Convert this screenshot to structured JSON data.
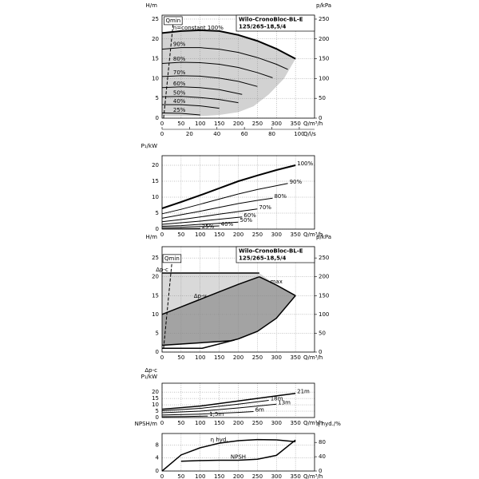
{
  "chart_data": [
    {
      "type": "line",
      "title": [
        "Wilo-CronoBloc-BL-E",
        "125/265-18,5/4"
      ],
      "ylabel": [
        "H/m"
      ],
      "y2label": "p/kPa",
      "xlabel": "Q/m³/h",
      "x2label": "Q/l/s",
      "xlim": [
        0,
        400
      ],
      "xticks": [
        0,
        50,
        100,
        150,
        200,
        250,
        300,
        350
      ],
      "x2lim": [
        0,
        111.1
      ],
      "x2ticks": [
        0,
        20,
        40,
        60,
        80,
        100
      ],
      "ylim": [
        0,
        26
      ],
      "yticks": [
        0,
        5,
        10,
        15,
        20,
        25
      ],
      "y2lim": [
        0,
        260
      ],
      "y2ticks": [
        0,
        50,
        100,
        150,
        200,
        250
      ],
      "grid": true,
      "areas": [
        {
          "color": "#d2d2d2",
          "x": [
            0,
            50,
            100,
            150,
            200,
            250,
            300,
            350,
            320,
            280,
            240,
            200,
            150,
            100,
            0
          ],
          "values": [
            21.5,
            22,
            22.2,
            22,
            21,
            19.5,
            17.5,
            15,
            10,
            6,
            3,
            1.5,
            0.8,
            0.5,
            0.5
          ]
        }
      ],
      "series": [
        {
          "name": "n=constant 100%",
          "color": "#000",
          "width": 2,
          "x": [
            0,
            50,
            100,
            150,
            200,
            250,
            300,
            350
          ],
          "values": [
            21.5,
            22,
            22.2,
            22,
            21,
            19.5,
            17.5,
            15
          ]
        },
        {
          "name": "90%",
          "color": "#000",
          "width": 1,
          "x": [
            0,
            50,
            100,
            150,
            200,
            250,
            300,
            330
          ],
          "values": [
            17.4,
            17.8,
            17.8,
            17.4,
            16.6,
            15.3,
            13.6,
            12.3
          ]
        },
        {
          "name": "80%",
          "color": "#000",
          "width": 1,
          "x": [
            0,
            50,
            100,
            150,
            200,
            250,
            290
          ],
          "values": [
            13.8,
            14.1,
            14,
            13.6,
            12.8,
            11.5,
            10.2
          ]
        },
        {
          "name": "70%",
          "color": "#000",
          "width": 1,
          "x": [
            0,
            50,
            100,
            150,
            200,
            250
          ],
          "values": [
            10.5,
            10.7,
            10.6,
            10.1,
            9.3,
            8
          ]
        },
        {
          "name": "60%",
          "color": "#000",
          "width": 1,
          "x": [
            0,
            50,
            100,
            150,
            210
          ],
          "values": [
            7.7,
            7.9,
            7.7,
            7.2,
            6
          ]
        },
        {
          "name": "50%",
          "color": "#000",
          "width": 1,
          "x": [
            0,
            50,
            100,
            150,
            200
          ],
          "values": [
            5.4,
            5.5,
            5.2,
            4.7,
            3.9
          ]
        },
        {
          "name": "40%",
          "color": "#000",
          "width": 1,
          "x": [
            0,
            50,
            100,
            150
          ],
          "values": [
            3.4,
            3.4,
            3.1,
            2.5
          ]
        },
        {
          "name": "25%",
          "color": "#000",
          "width": 1,
          "x": [
            0,
            50,
            100
          ],
          "values": [
            1.3,
            1.2,
            0.8
          ]
        },
        {
          "name": "Qmin",
          "color": "#000",
          "width": 1,
          "dash": true,
          "x": [
            4,
            29
          ],
          "values": [
            0,
            23.8
          ]
        }
      ]
    },
    {
      "type": "line",
      "ylabel": [
        "P₁/kW"
      ],
      "xlabel": "Q/m³/h",
      "xlim": [
        0,
        400
      ],
      "xticks": [
        0,
        50,
        100,
        150,
        200,
        250,
        300,
        350
      ],
      "ylim": [
        0,
        23
      ],
      "yticks": [
        0,
        5,
        10,
        15,
        20
      ],
      "grid": true,
      "series": [
        {
          "name": "100%",
          "color": "#000",
          "width": 2,
          "x": [
            0,
            50,
            100,
            150,
            200,
            250,
            300,
            350
          ],
          "values": [
            6.5,
            8.5,
            10.6,
            12.8,
            15,
            16.8,
            18.5,
            20
          ]
        },
        {
          "name": "90%",
          "color": "#000",
          "width": 1,
          "x": [
            0,
            50,
            100,
            150,
            200,
            250,
            300,
            330
          ],
          "values": [
            4.8,
            6.2,
            7.8,
            9.4,
            11,
            12.4,
            13.6,
            14.3
          ]
        },
        {
          "name": "80%",
          "color": "#000",
          "width": 1,
          "x": [
            0,
            50,
            100,
            150,
            200,
            250,
            290
          ],
          "values": [
            3.4,
            4.5,
            5.6,
            6.8,
            8,
            9,
            9.7
          ]
        },
        {
          "name": "70%",
          "color": "#000",
          "width": 1,
          "x": [
            0,
            50,
            100,
            150,
            200,
            250
          ],
          "values": [
            2.3,
            3,
            3.8,
            4.7,
            5.5,
            6.3
          ]
        },
        {
          "name": "60%",
          "color": "#000",
          "width": 1,
          "x": [
            0,
            50,
            100,
            150,
            210
          ],
          "values": [
            1.5,
            2,
            2.5,
            3.1,
            3.8
          ]
        },
        {
          "name": "50%",
          "color": "#000",
          "width": 1,
          "x": [
            0,
            50,
            100,
            150,
            200
          ],
          "values": [
            0.9,
            1.1,
            1.5,
            1.8,
            2.2
          ]
        },
        {
          "name": "40%",
          "color": "#000",
          "width": 1,
          "x": [
            0,
            50,
            100,
            150
          ],
          "values": [
            0.5,
            0.6,
            0.8,
            1
          ]
        },
        {
          "name": "25%",
          "color": "#000",
          "width": 1,
          "x": [
            0,
            50,
            100
          ],
          "values": [
            0.1,
            0.15,
            0.2
          ]
        }
      ]
    },
    {
      "type": "line",
      "title": [
        "Wilo-CronoBloc-BL-E",
        "125/265-18,5/4"
      ],
      "ylabel": [
        "H/m"
      ],
      "y2label": "p/kPa",
      "xlabel": "Q/m³/h",
      "xlim": [
        0,
        400
      ],
      "xticks": [
        0,
        50,
        100,
        150,
        200,
        250,
        300,
        350
      ],
      "ylim": [
        0,
        28
      ],
      "yticks": [
        0,
        5,
        10,
        15,
        20,
        25
      ],
      "y2lim": [
        0,
        280
      ],
      "y2ticks": [
        0,
        50,
        100,
        150,
        200,
        250
      ],
      "grid": true,
      "areas": [
        {
          "color": "#d9d9d9",
          "x": [
            0,
            255,
            300,
            350,
            300,
            250,
            200,
            180,
            0
          ],
          "values": [
            21,
            21,
            17.8,
            15,
            9,
            5.5,
            3.5,
            3,
            1.8
          ]
        },
        {
          "color": "#a3a3a3",
          "x": [
            0,
            50,
            100,
            150,
            200,
            255,
            300,
            350,
            300,
            250,
            200,
            180,
            0
          ],
          "values": [
            10,
            12,
            14,
            16,
            18,
            20,
            17.8,
            15,
            9,
            5.5,
            3.5,
            3,
            1.8
          ]
        }
      ],
      "series": [
        {
          "name": "Δp-c",
          "color": "#000",
          "width": 1.5,
          "x": [
            0,
            255
          ],
          "values": [
            21,
            21
          ]
        },
        {
          "name": "Δp-v",
          "color": "#000",
          "width": 1.5,
          "x": [
            0,
            50,
            100,
            150,
            200,
            255
          ],
          "values": [
            10,
            12,
            14,
            16,
            18,
            20
          ]
        },
        {
          "name": "max",
          "color": "#000",
          "width": 1.5,
          "x": [
            255,
            300,
            350
          ],
          "values": [
            20,
            17.8,
            15
          ]
        },
        {
          "color": "#000",
          "width": 1.5,
          "x": [
            350,
            300,
            250,
            200,
            180,
            0
          ],
          "values": [
            15,
            9,
            5.5,
            3.5,
            3,
            1.8
          ]
        },
        {
          "color": "#000",
          "width": 1.5,
          "x": [
            0,
            105,
            190
          ],
          "values": [
            1,
            1,
            3.2
          ]
        },
        {
          "name": "Qmin",
          "color": "#000",
          "width": 1,
          "dash": true,
          "x": [
            4,
            26
          ],
          "values": [
            1,
            24
          ]
        }
      ]
    },
    {
      "type": "line",
      "ylabel": [
        "Δp-c",
        "P₁/kW"
      ],
      "xlabel": "Q/m³/h",
      "xlim": [
        0,
        400
      ],
      "xticks": [
        0,
        50,
        100,
        150,
        200,
        250,
        300,
        350
      ],
      "ylim": [
        0,
        27
      ],
      "yticks": [
        0,
        5,
        10,
        15,
        20
      ],
      "grid": true,
      "series": [
        {
          "name": "21m",
          "color": "#000",
          "width": 1.5,
          "x": [
            0,
            100,
            200,
            300,
            350
          ],
          "values": [
            6.5,
            9,
            13,
            17,
            19
          ]
        },
        {
          "name": "18m",
          "color": "#000",
          "width": 1,
          "x": [
            0,
            100,
            200,
            280
          ],
          "values": [
            5.3,
            7.2,
            10.5,
            13.5
          ]
        },
        {
          "name": "13m",
          "color": "#000",
          "width": 1,
          "x": [
            0,
            100,
            200,
            300
          ],
          "values": [
            3.8,
            5,
            7.5,
            10.5
          ]
        },
        {
          "name": "6m",
          "color": "#000",
          "width": 1,
          "x": [
            0,
            100,
            200,
            240
          ],
          "values": [
            2,
            2.7,
            4,
            4.7
          ]
        },
        {
          "name": "1,5m",
          "color": "#000",
          "width": 1,
          "x": [
            0,
            60,
            120
          ],
          "values": [
            0.6,
            0.8,
            1.2
          ]
        }
      ]
    },
    {
      "type": "line",
      "ylabel": [
        "NPSH/m"
      ],
      "y2label": "η hyd./%",
      "xlabel": "Q/m³/h",
      "xlim": [
        0,
        400
      ],
      "xticks": [
        0,
        50,
        100,
        150,
        200,
        250,
        300,
        350
      ],
      "ylim": [
        0,
        11.5
      ],
      "yticks": [
        0,
        4,
        8
      ],
      "y2lim": [
        0,
        105
      ],
      "y2ticks": [
        0,
        40,
        80
      ],
      "grid": true,
      "series": [
        {
          "name": "η hyd.",
          "color": "#000",
          "width": 1.5,
          "axis": "y2",
          "x": [
            0,
            50,
            100,
            150,
            200,
            250,
            300,
            350
          ],
          "values": [
            0,
            45,
            65,
            78,
            85,
            88,
            87,
            82
          ]
        },
        {
          "name": "NPSH",
          "color": "#000",
          "width": 1.5,
          "x": [
            50,
            100,
            150,
            200,
            250,
            300,
            350
          ],
          "values": [
            3,
            3.2,
            3.3,
            3.3,
            3.6,
            4.8,
            9.5
          ]
        }
      ]
    }
  ]
}
